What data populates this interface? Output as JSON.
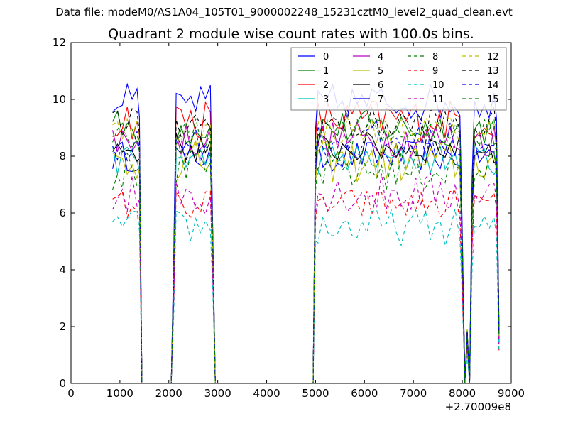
{
  "suptitle": "Data file: modeM0/AS1A04_105T01_9000002248_15231cztM0_level2_quad_clean.evt",
  "chart_data": {
    "type": "line",
    "title": "Quadrant 2 module wise count rates with 100.0s bins.",
    "xlabel": "",
    "ylabel": "",
    "x_offset_label": "+2.70009e8",
    "xlim": [
      0,
      9000
    ],
    "ylim": [
      0,
      12
    ],
    "xticks": [
      "0",
      "1000",
      "2000",
      "3000",
      "4000",
      "5000",
      "6000",
      "7000",
      "8000",
      "9000"
    ],
    "yticks": [
      "0",
      "2",
      "4",
      "6",
      "8",
      "10",
      "12"
    ],
    "grid": false,
    "legend_position": "top-right",
    "segments": [
      {
        "start": 850,
        "end": 1350
      },
      {
        "start": 2150,
        "end": 2850
      },
      {
        "start": 5050,
        "end": 7950
      },
      {
        "start": 8250,
        "end": 8650
      }
    ],
    "gap_bins": [
      1450,
      1550,
      1650,
      1750,
      1850,
      1950,
      2050,
      2950,
      3050,
      3150,
      3250,
      3350,
      3450,
      3550,
      3650,
      3750,
      3850,
      3950,
      4050,
      4150,
      4250,
      4350,
      4450,
      4550,
      4650,
      4750,
      4850,
      4950,
      8050,
      8150
    ],
    "edge_points": [
      {
        "x": 1400,
        "frac": 0.95
      },
      {
        "x": 1450,
        "frac": 0.0
      },
      {
        "x": 2050,
        "frac": 0.0
      },
      {
        "x": 2100,
        "frac": 0.45
      },
      {
        "x": 2900,
        "frac": 0.55
      },
      {
        "x": 2950,
        "frac": 0.0
      },
      {
        "x": 4950,
        "frac": 0.0
      },
      {
        "x": 5000,
        "frac": 0.92
      },
      {
        "x": 8000,
        "frac": 0.55
      },
      {
        "x": 8050,
        "frac": 0.03
      },
      {
        "x": 8100,
        "frac": 0.2
      },
      {
        "x": 8200,
        "frac": 0.75
      },
      {
        "x": 8700,
        "frac": 0.95
      },
      {
        "x": 8750,
        "frac": 0.2
      }
    ],
    "series": [
      {
        "name": "0",
        "color": "#0000ff",
        "dash": "solid",
        "level": 8.0
      },
      {
        "name": "1",
        "color": "#008000",
        "dash": "solid",
        "level": 9.0
      },
      {
        "name": "2",
        "color": "#ff0000",
        "dash": "solid",
        "level": 9.3
      },
      {
        "name": "3",
        "color": "#00bfbf",
        "dash": "solid",
        "level": 7.9
      },
      {
        "name": "4",
        "color": "#bf00bf",
        "dash": "solid",
        "level": 8.6
      },
      {
        "name": "5",
        "color": "#bfbf00",
        "dash": "solid",
        "level": 7.8
      },
      {
        "name": "6",
        "color": "#000000",
        "dash": "solid",
        "level": 8.3
      },
      {
        "name": "7",
        "color": "#0000ff",
        "dash": "solid",
        "level": 9.9
      },
      {
        "name": "8",
        "color": "#008000",
        "dash": "dashed",
        "level": 7.5
      },
      {
        "name": "9",
        "color": "#ff0000",
        "dash": "dashed",
        "level": 6.3
      },
      {
        "name": "10",
        "color": "#00bfbf",
        "dash": "dashed",
        "level": 5.5
      },
      {
        "name": "11",
        "color": "#bf00bf",
        "dash": "dashed",
        "level": 6.7
      },
      {
        "name": "12",
        "color": "#bfbf00",
        "dash": "dashed",
        "level": 8.9
      },
      {
        "name": "13",
        "color": "#000000",
        "dash": "dashed",
        "level": 9.1
      },
      {
        "name": "14",
        "color": "#0000ff",
        "dash": "dashed",
        "level": 8.5
      },
      {
        "name": "15",
        "color": "#008000",
        "dash": "dashed",
        "level": 8.8
      }
    ]
  }
}
